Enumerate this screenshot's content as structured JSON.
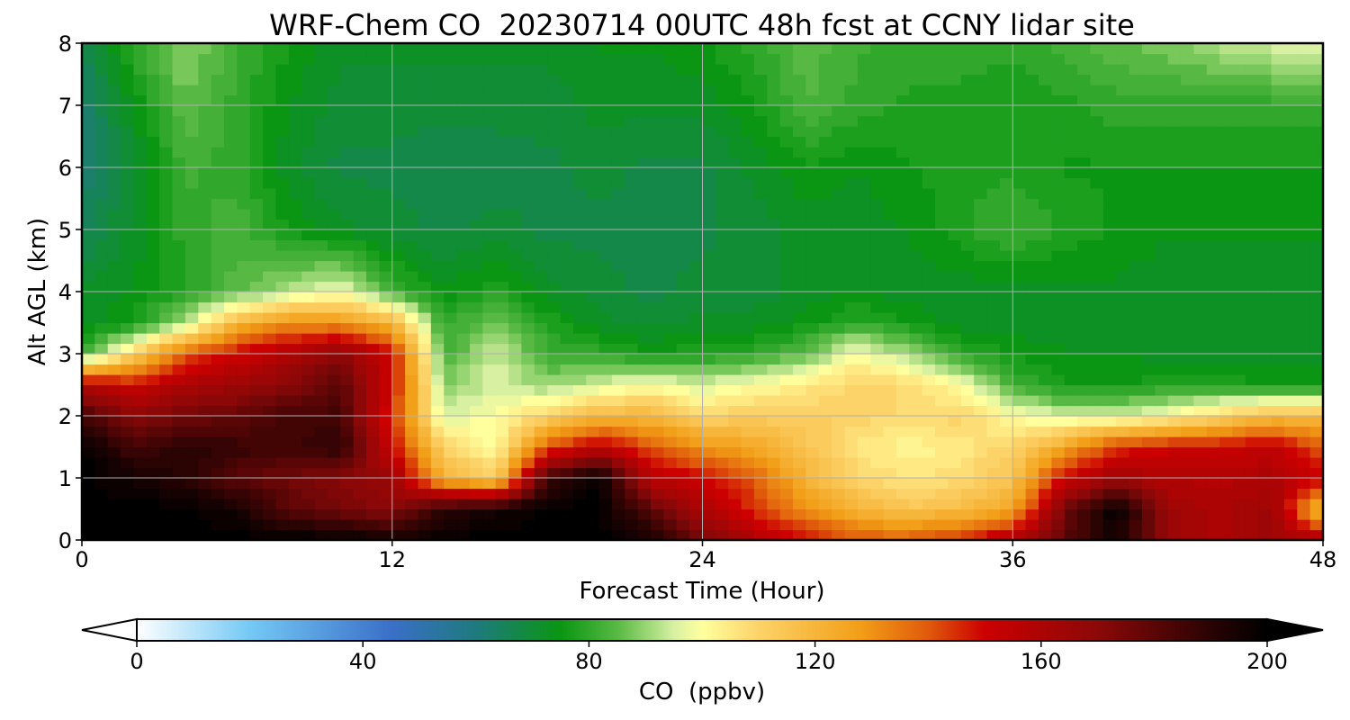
{
  "chart_data": {
    "type": "heatmap",
    "title": "WRF-Chem CO  20230714 00UTC 48h fcst at CCNY lidar site",
    "xlabel": "Forecast Time (Hour)",
    "ylabel": "Alt AGL (km)",
    "xlim": [
      0,
      48
    ],
    "ylim": [
      0,
      8
    ],
    "xticks": [
      0,
      12,
      24,
      36,
      48
    ],
    "yticks": [
      0,
      1,
      2,
      3,
      4,
      5,
      6,
      7,
      8
    ],
    "grid": true,
    "x": [
      0,
      2,
      4,
      6,
      8,
      10,
      12,
      14,
      16,
      18,
      20,
      22,
      24,
      26,
      28,
      30,
      32,
      34,
      36,
      38,
      40,
      42,
      44,
      46,
      48
    ],
    "y": [
      0,
      0.5,
      1,
      1.5,
      2,
      2.5,
      3,
      3.5,
      4,
      5,
      6,
      7,
      8
    ],
    "z": [
      [
        200,
        200,
        200,
        200,
        200,
        200,
        195,
        200,
        200,
        200,
        200,
        195,
        175,
        160,
        150,
        140,
        140,
        145,
        160,
        180,
        195,
        165,
        160,
        165,
        160
      ],
      [
        200,
        200,
        200,
        195,
        180,
        175,
        170,
        190,
        195,
        200,
        200,
        180,
        160,
        145,
        130,
        120,
        115,
        118,
        125,
        175,
        200,
        165,
        160,
        165,
        115
      ],
      [
        200,
        195,
        190,
        180,
        175,
        170,
        165,
        120,
        110,
        185,
        200,
        155,
        150,
        140,
        120,
        110,
        105,
        108,
        115,
        150,
        165,
        158,
        158,
        160,
        150
      ],
      [
        200,
        185,
        190,
        188,
        185,
        190,
        150,
        110,
        100,
        140,
        155,
        140,
        130,
        125,
        115,
        105,
        102,
        105,
        110,
        125,
        145,
        150,
        150,
        155,
        140
      ],
      [
        185,
        170,
        175,
        178,
        185,
        185,
        145,
        95,
        100,
        110,
        120,
        120,
        110,
        112,
        112,
        110,
        108,
        110,
        100,
        95,
        95,
        100,
        110,
        118,
        118
      ],
      [
        160,
        150,
        160,
        165,
        170,
        180,
        150,
        88,
        95,
        90,
        95,
        100,
        95,
        100,
        105,
        110,
        108,
        100,
        82,
        76,
        76,
        78,
        78,
        76,
        76
      ],
      [
        80,
        110,
        140,
        150,
        160,
        170,
        150,
        82,
        95,
        82,
        80,
        76,
        78,
        80,
        85,
        100,
        90,
        80,
        76,
        74,
        74,
        72,
        72,
        72,
        72
      ],
      [
        72,
        76,
        92,
        120,
        130,
        130,
        120,
        80,
        88,
        78,
        72,
        70,
        72,
        72,
        75,
        80,
        76,
        72,
        72,
        72,
        72,
        72,
        72,
        72,
        72
      ],
      [
        72,
        74,
        78,
        85,
        92,
        98,
        82,
        74,
        78,
        72,
        70,
        68,
        70,
        70,
        72,
        74,
        72,
        72,
        72,
        73,
        73,
        72,
        72,
        72,
        72
      ],
      [
        65,
        72,
        80,
        83,
        76,
        72,
        70,
        68,
        70,
        68,
        68,
        66,
        68,
        70,
        72,
        72,
        74,
        78,
        82,
        78,
        76,
        74,
        74,
        74,
        74
      ],
      [
        62,
        70,
        82,
        80,
        72,
        68,
        68,
        66,
        67,
        68,
        70,
        68,
        68,
        72,
        76,
        74,
        76,
        78,
        78,
        76,
        76,
        76,
        76,
        76,
        76
      ],
      [
        62,
        74,
        86,
        80,
        74,
        70,
        70,
        70,
        70,
        70,
        72,
        72,
        72,
        76,
        84,
        80,
        78,
        78,
        76,
        78,
        80,
        80,
        80,
        80,
        80
      ],
      [
        66,
        80,
        90,
        82,
        76,
        72,
        72,
        72,
        72,
        72,
        74,
        74,
        76,
        80,
        85,
        82,
        80,
        80,
        80,
        82,
        86,
        88,
        92,
        95,
        96
      ]
    ],
    "colorbar": {
      "label": "CO  (ppbv)",
      "min": 0,
      "max": 200,
      "ticks": [
        0,
        40,
        80,
        120,
        160,
        200
      ],
      "extend": "both",
      "stops": [
        {
          "v": 0,
          "c": "#ffffff"
        },
        {
          "v": 20,
          "c": "#74c9f5"
        },
        {
          "v": 45,
          "c": "#3a6fc8"
        },
        {
          "v": 60,
          "c": "#1e7a7e"
        },
        {
          "v": 75,
          "c": "#0a9612"
        },
        {
          "v": 85,
          "c": "#57b943"
        },
        {
          "v": 95,
          "c": "#d7f0a2"
        },
        {
          "v": 100,
          "c": "#ffff9e"
        },
        {
          "v": 110,
          "c": "#fcd368"
        },
        {
          "v": 128,
          "c": "#f29e17"
        },
        {
          "v": 140,
          "c": "#e05a0c"
        },
        {
          "v": 150,
          "c": "#cc0000"
        },
        {
          "v": 170,
          "c": "#8c0808"
        },
        {
          "v": 190,
          "c": "#2a0303"
        },
        {
          "v": 200,
          "c": "#000000"
        }
      ]
    }
  }
}
